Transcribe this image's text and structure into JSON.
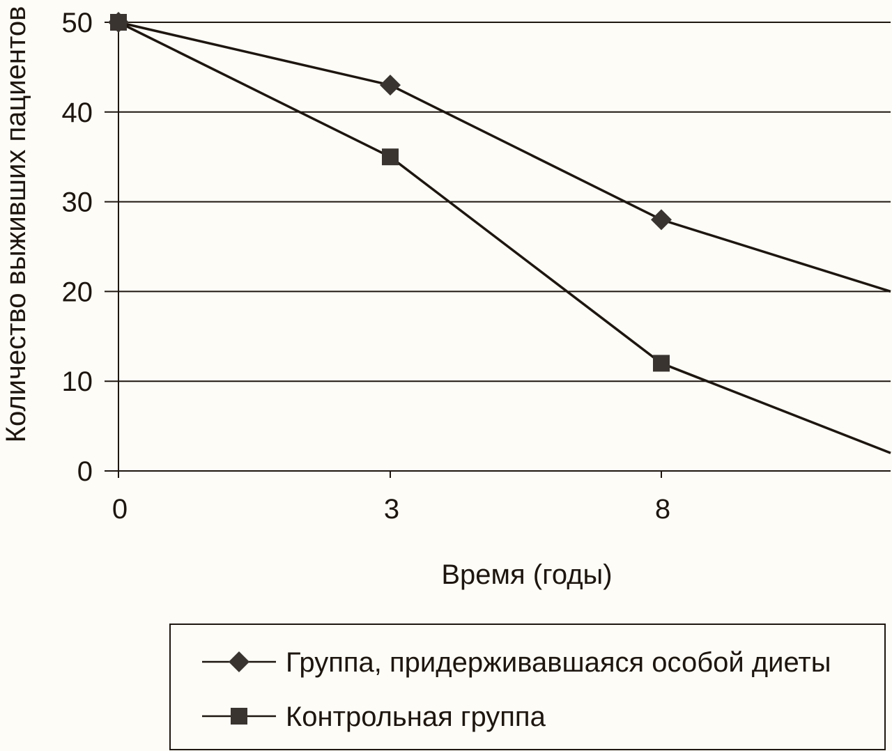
{
  "chart_data": {
    "type": "line",
    "title": "",
    "xlabel": "Время (годы)",
    "ylabel": "Количество выживших пациентов",
    "x_ticks": [
      "0",
      "3",
      "8"
    ],
    "y_ticks": [
      "0",
      "10",
      "20",
      "30",
      "40",
      "50"
    ],
    "ylim": [
      0,
      50
    ],
    "grid": "horizontal",
    "legend_position": "bottom",
    "series": [
      {
        "name": "Группа, придерживавшаяся особой диеты",
        "marker": "diamond",
        "color": "#3a3430",
        "points": [
          {
            "x": 0,
            "y": 50
          },
          {
            "x": 3,
            "y": 43
          },
          {
            "x": 8,
            "y": 28
          }
        ],
        "trend_end": {
          "x": "beyond 8",
          "y": 20
        }
      },
      {
        "name": "Контрольная группа",
        "marker": "square",
        "color": "#3a3430",
        "points": [
          {
            "x": 0,
            "y": 50
          },
          {
            "x": 3,
            "y": 35
          },
          {
            "x": 8,
            "y": 12
          }
        ],
        "trend_end": {
          "x": "beyond 8",
          "y": 2
        }
      }
    ]
  },
  "colors": {
    "line": "#1d150f",
    "marker": "#3a3430",
    "background": "#fdfcf6"
  }
}
